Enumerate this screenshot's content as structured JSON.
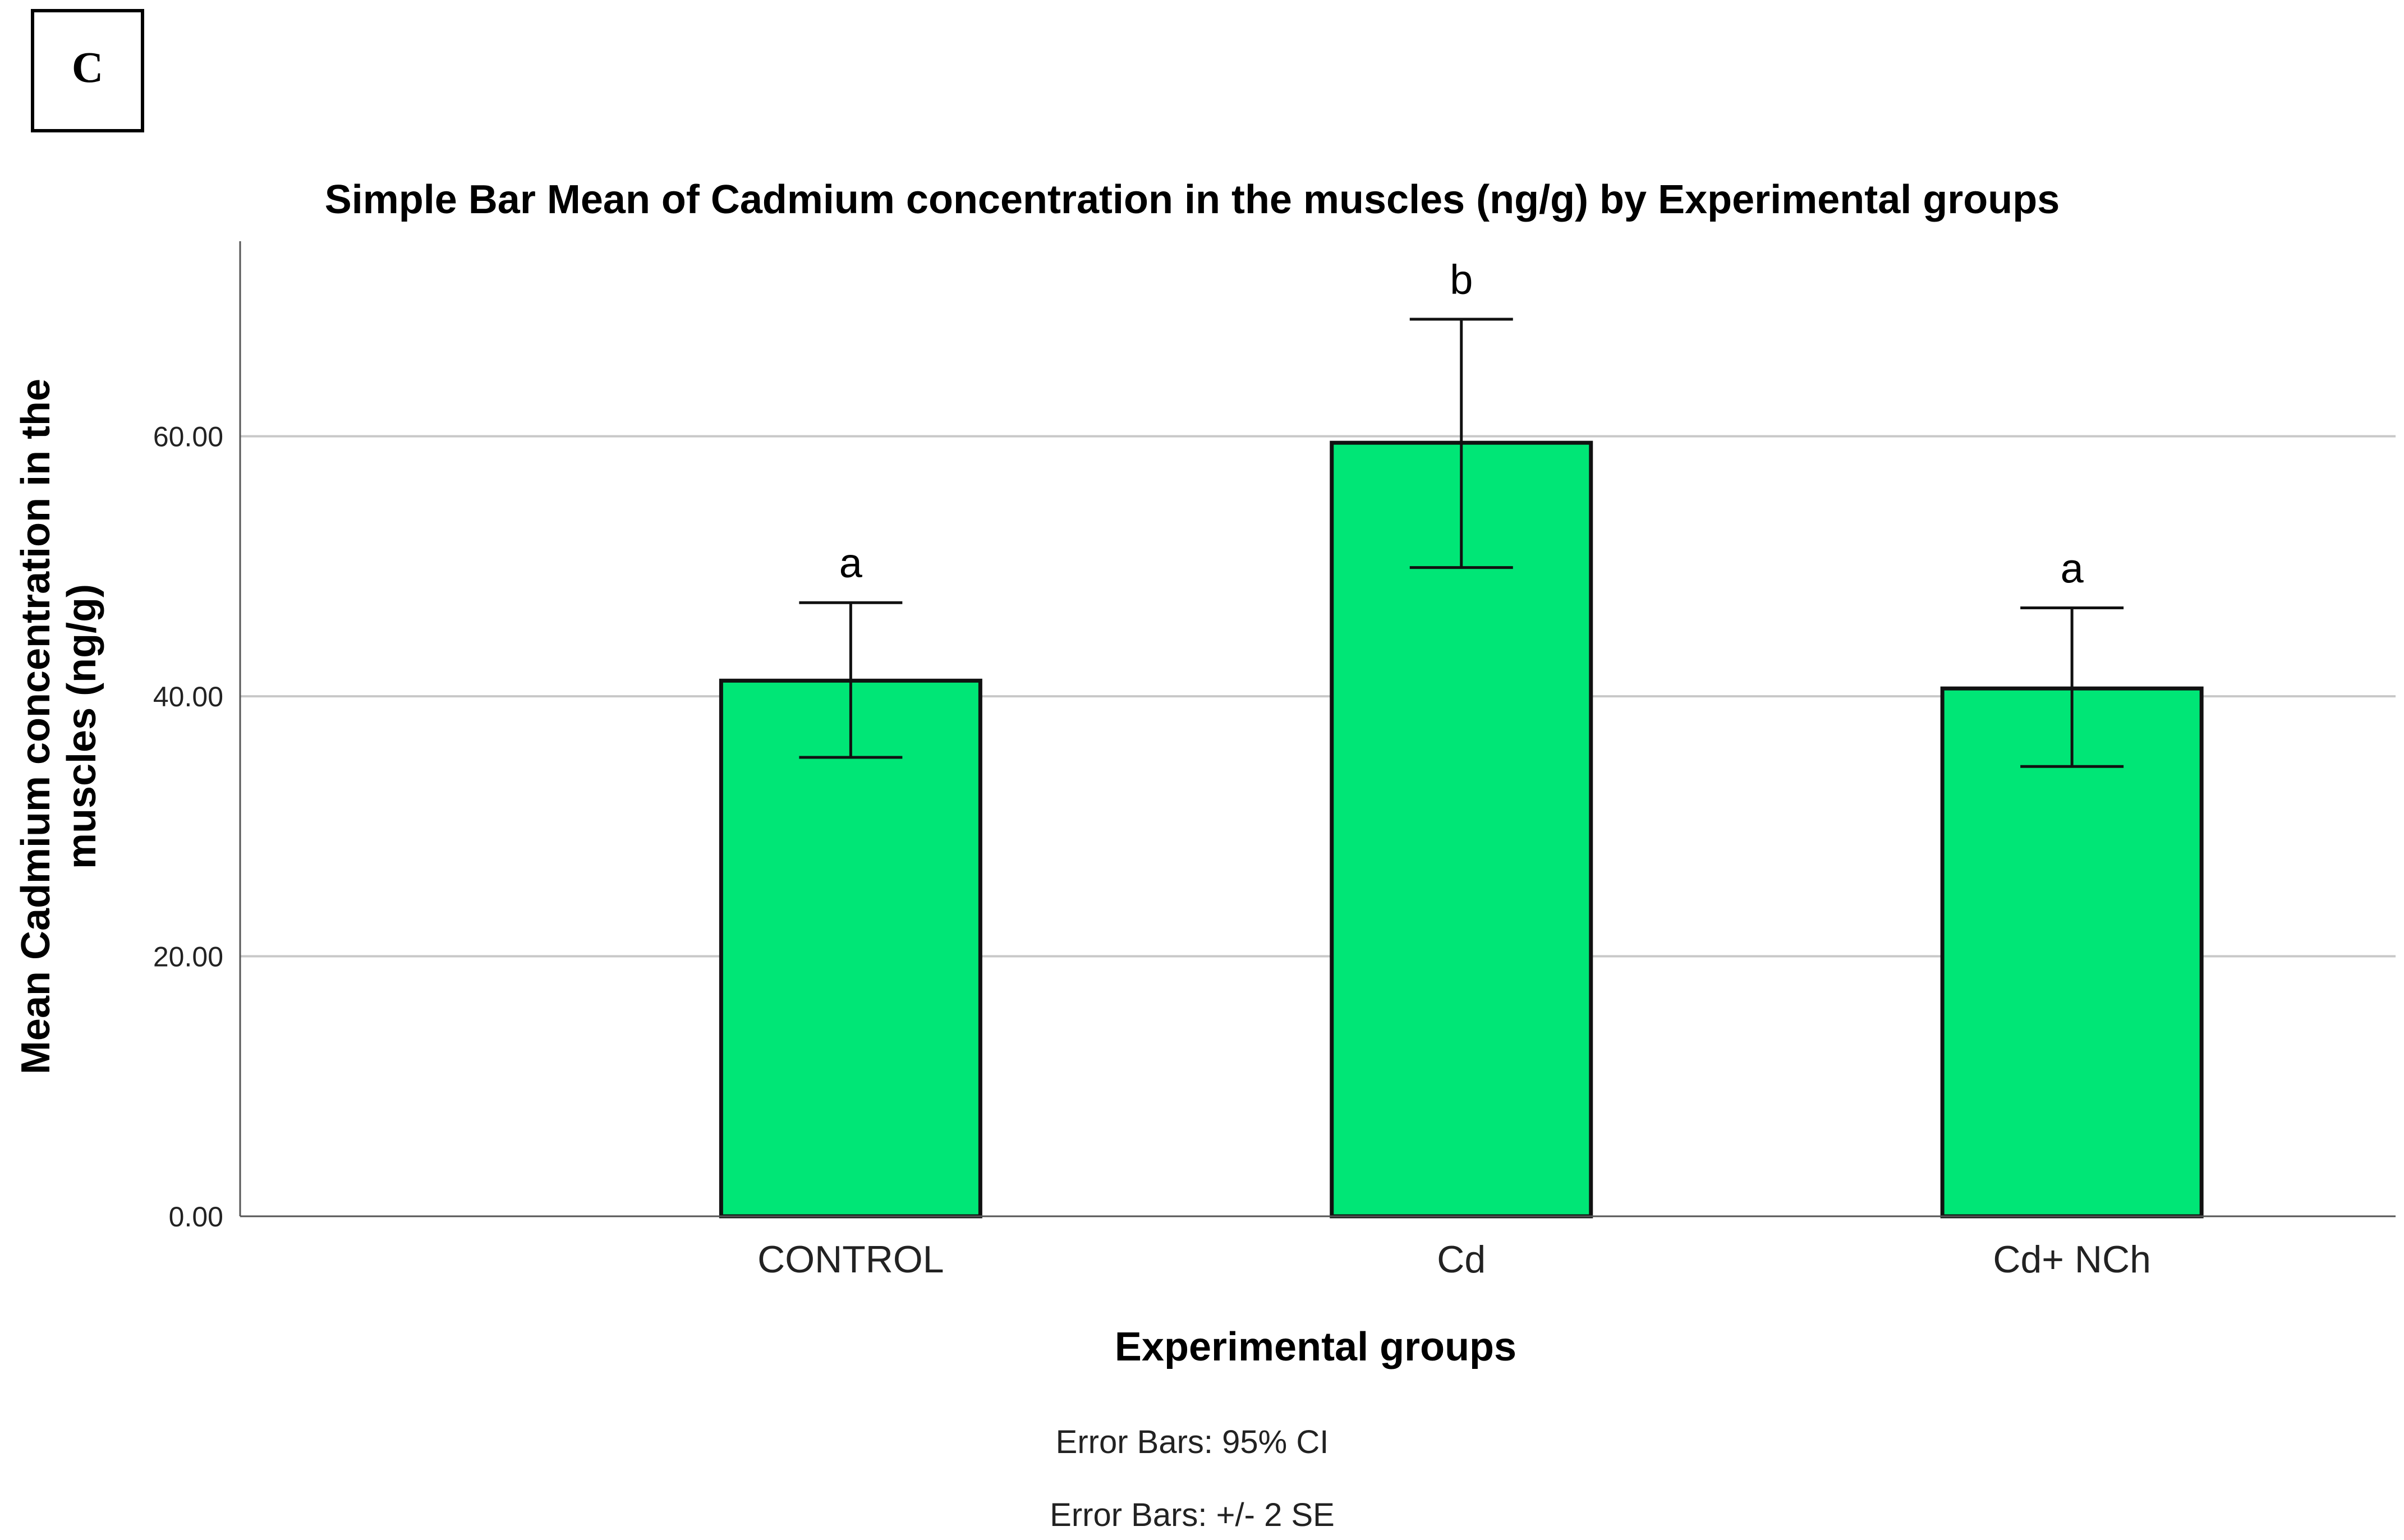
{
  "panel_label": "C",
  "chart_data": {
    "type": "bar",
    "title": "Simple Bar Mean of Cadmium concentration in the muscles (ng/g) by Experimental groups",
    "xlabel": "Experimental groups",
    "ylabel_lines": [
      "Mean Cadmium concentration in the",
      "muscles (ng/g)"
    ],
    "categories": [
      "CONTROL",
      "Cd",
      "Cd+ NCh"
    ],
    "values": [
      41.2,
      59.5,
      40.6
    ],
    "error_low": [
      35.3,
      49.9,
      34.6
    ],
    "error_high": [
      47.2,
      69.0,
      46.8
    ],
    "significance_letters": [
      "a",
      "b",
      "a"
    ],
    "ylim": [
      0,
      75
    ],
    "yticks": [
      0,
      20,
      40,
      60
    ],
    "ytick_labels": [
      "0.00",
      "20.00",
      "40.00",
      "60.00"
    ],
    "grid": true,
    "bar_color": "#00E676",
    "footnotes": [
      "Error Bars: 95% CI",
      "Error Bars: +/- 2 SE"
    ]
  }
}
